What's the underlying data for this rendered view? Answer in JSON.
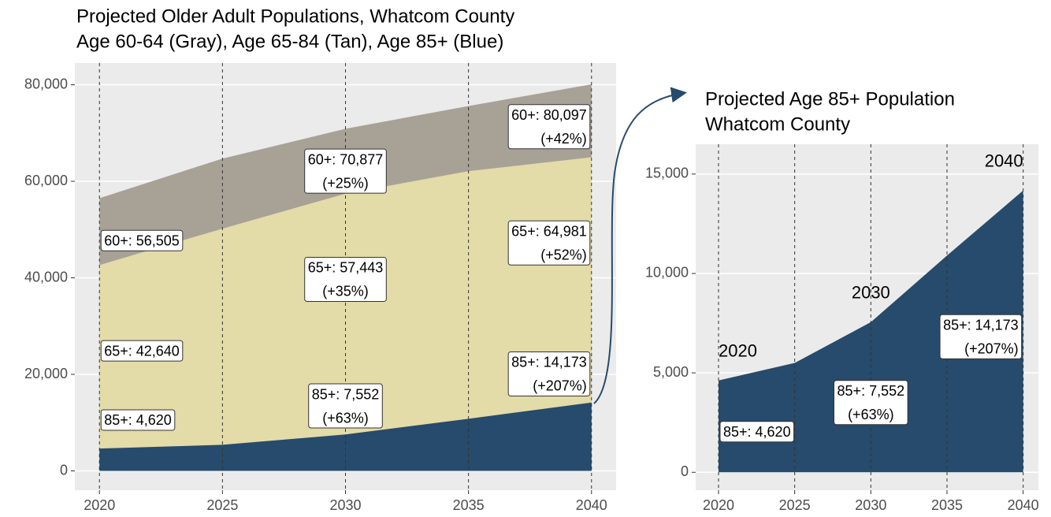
{
  "chart_data": [
    {
      "type": "area",
      "title": "Projected Older Adult Populations, Whatcom County",
      "subtitle": "Age 60-64 (Gray), Age 65-84 (Tan), Age 85+ (Blue)",
      "x": [
        2020,
        2025,
        2030,
        2035,
        2040
      ],
      "series": [
        {
          "color": "#a8a196",
          "values": [
            56505,
            64700,
            70877,
            75600,
            80097
          ],
          "value_labels": [
            [
              "60+: 56,505"
            ],
            null,
            [
              "60+: 70,877",
              "(+25%)"
            ],
            null,
            [
              "60+: 80,097",
              "(+42%)"
            ]
          ]
        },
        {
          "color": "#e3dba8",
          "values": [
            42640,
            50200,
            57443,
            62100,
            64981
          ],
          "value_labels": [
            [
              "65+: 42,640"
            ],
            null,
            [
              "65+: 57,443",
              "(+35%)"
            ],
            null,
            [
              "65+: 64,981",
              "(+52%)"
            ]
          ]
        },
        {
          "color": "#264b6c",
          "values": [
            4620,
            5400,
            7552,
            10800,
            14173
          ],
          "value_labels": [
            [
              "85+: 4,620"
            ],
            null,
            [
              "85+: 7,552",
              "(+63%)"
            ],
            null,
            [
              "85+: 14,173",
              "(+207%)"
            ]
          ]
        }
      ],
      "xlim": [
        2019,
        2041
      ],
      "xticks": [
        2020,
        2025,
        2030,
        2035,
        2040
      ],
      "ylim": [
        -4000,
        84500
      ],
      "yticks": [
        0,
        {
          "value": 20000,
          "label": "20,000"
        },
        {
          "value": 40000,
          "label": "40,000"
        },
        {
          "value": 60000,
          "label": "60,000"
        },
        {
          "value": 80000,
          "label": "80,000"
        }
      ],
      "grid": true
    },
    {
      "type": "area",
      "title": "Projected Age 85+ Population",
      "subtitle": "Whatcom County",
      "x": [
        2020,
        2025,
        2030,
        2035,
        2040
      ],
      "series": [
        {
          "color": "#264b6c",
          "values": [
            4620,
            5500,
            7552,
            10900,
            14173
          ],
          "value_labels": [
            [
              "85+: 4,620"
            ],
            null,
            [
              "85+: 7,552",
              "(+63%)"
            ],
            null,
            [
              "85+: 14,173",
              "(+207%)"
            ]
          ],
          "point_labels": [
            "2020",
            null,
            "2030",
            null,
            "2040"
          ]
        }
      ],
      "xlim": [
        2018.5,
        2041
      ],
      "xticks": [
        2020,
        2025,
        2030,
        2035,
        2040
      ],
      "ylim": [
        -900,
        16500
      ],
      "yticks": [
        0,
        {
          "value": 5000,
          "label": "5,000"
        },
        {
          "value": 10000,
          "label": "10,000"
        },
        {
          "value": 15000,
          "label": "15,000"
        }
      ],
      "grid": true
    }
  ]
}
